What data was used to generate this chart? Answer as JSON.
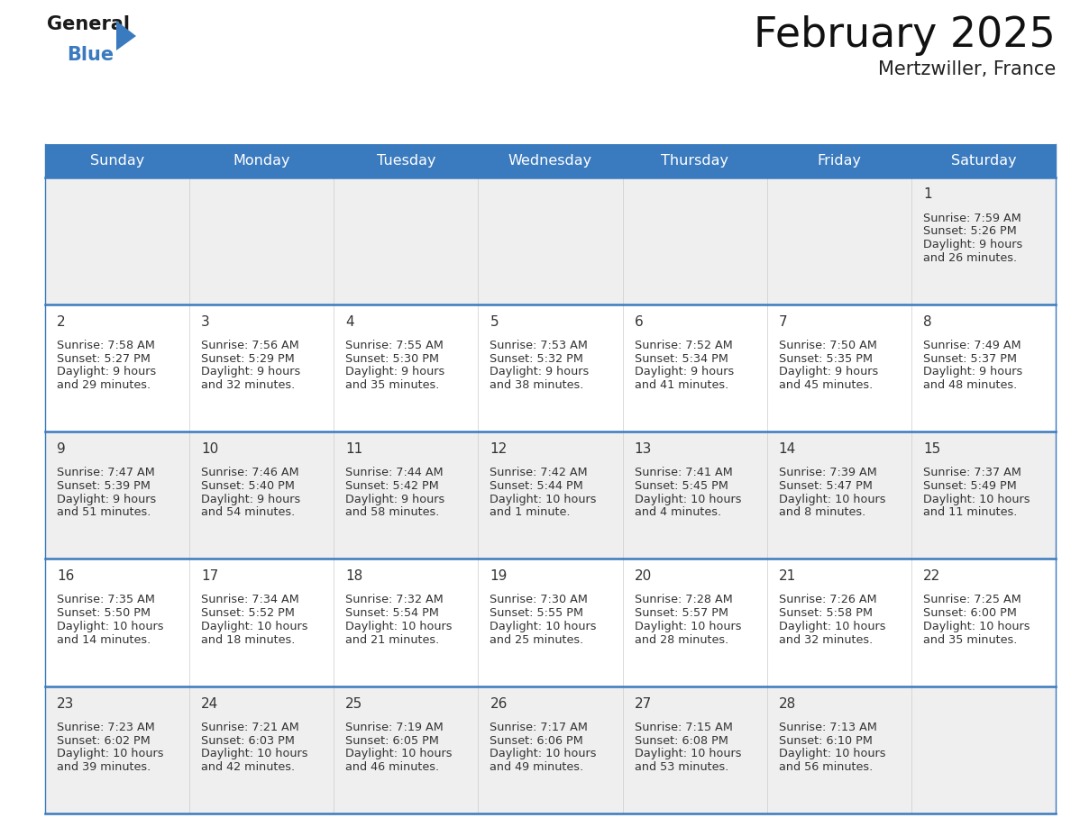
{
  "title": "February 2025",
  "subtitle": "Mertzwiller, France",
  "header_bg": "#3a7abf",
  "header_text_color": "#ffffff",
  "day_names": [
    "Sunday",
    "Monday",
    "Tuesday",
    "Wednesday",
    "Thursday",
    "Friday",
    "Saturday"
  ],
  "separator_color": "#3a7abf",
  "cell_bg_gray": "#efefef",
  "cell_bg_white": "#ffffff",
  "day_number_color": "#333333",
  "text_color": "#333333",
  "calendar": [
    [
      null,
      null,
      null,
      null,
      null,
      null,
      {
        "day": "1",
        "sunrise": "7:59 AM",
        "sunset": "5:26 PM",
        "daylight": "9 hours",
        "daylight2": "and 26 minutes."
      }
    ],
    [
      {
        "day": "2",
        "sunrise": "7:58 AM",
        "sunset": "5:27 PM",
        "daylight": "9 hours",
        "daylight2": "and 29 minutes."
      },
      {
        "day": "3",
        "sunrise": "7:56 AM",
        "sunset": "5:29 PM",
        "daylight": "9 hours",
        "daylight2": "and 32 minutes."
      },
      {
        "day": "4",
        "sunrise": "7:55 AM",
        "sunset": "5:30 PM",
        "daylight": "9 hours",
        "daylight2": "and 35 minutes."
      },
      {
        "day": "5",
        "sunrise": "7:53 AM",
        "sunset": "5:32 PM",
        "daylight": "9 hours",
        "daylight2": "and 38 minutes."
      },
      {
        "day": "6",
        "sunrise": "7:52 AM",
        "sunset": "5:34 PM",
        "daylight": "9 hours",
        "daylight2": "and 41 minutes."
      },
      {
        "day": "7",
        "sunrise": "7:50 AM",
        "sunset": "5:35 PM",
        "daylight": "9 hours",
        "daylight2": "and 45 minutes."
      },
      {
        "day": "8",
        "sunrise": "7:49 AM",
        "sunset": "5:37 PM",
        "daylight": "9 hours",
        "daylight2": "and 48 minutes."
      }
    ],
    [
      {
        "day": "9",
        "sunrise": "7:47 AM",
        "sunset": "5:39 PM",
        "daylight": "9 hours",
        "daylight2": "and 51 minutes."
      },
      {
        "day": "10",
        "sunrise": "7:46 AM",
        "sunset": "5:40 PM",
        "daylight": "9 hours",
        "daylight2": "and 54 minutes."
      },
      {
        "day": "11",
        "sunrise": "7:44 AM",
        "sunset": "5:42 PM",
        "daylight": "9 hours",
        "daylight2": "and 58 minutes."
      },
      {
        "day": "12",
        "sunrise": "7:42 AM",
        "sunset": "5:44 PM",
        "daylight": "10 hours",
        "daylight2": "and 1 minute."
      },
      {
        "day": "13",
        "sunrise": "7:41 AM",
        "sunset": "5:45 PM",
        "daylight": "10 hours",
        "daylight2": "and 4 minutes."
      },
      {
        "day": "14",
        "sunrise": "7:39 AM",
        "sunset": "5:47 PM",
        "daylight": "10 hours",
        "daylight2": "and 8 minutes."
      },
      {
        "day": "15",
        "sunrise": "7:37 AM",
        "sunset": "5:49 PM",
        "daylight": "10 hours",
        "daylight2": "and 11 minutes."
      }
    ],
    [
      {
        "day": "16",
        "sunrise": "7:35 AM",
        "sunset": "5:50 PM",
        "daylight": "10 hours",
        "daylight2": "and 14 minutes."
      },
      {
        "day": "17",
        "sunrise": "7:34 AM",
        "sunset": "5:52 PM",
        "daylight": "10 hours",
        "daylight2": "and 18 minutes."
      },
      {
        "day": "18",
        "sunrise": "7:32 AM",
        "sunset": "5:54 PM",
        "daylight": "10 hours",
        "daylight2": "and 21 minutes."
      },
      {
        "day": "19",
        "sunrise": "7:30 AM",
        "sunset": "5:55 PM",
        "daylight": "10 hours",
        "daylight2": "and 25 minutes."
      },
      {
        "day": "20",
        "sunrise": "7:28 AM",
        "sunset": "5:57 PM",
        "daylight": "10 hours",
        "daylight2": "and 28 minutes."
      },
      {
        "day": "21",
        "sunrise": "7:26 AM",
        "sunset": "5:58 PM",
        "daylight": "10 hours",
        "daylight2": "and 32 minutes."
      },
      {
        "day": "22",
        "sunrise": "7:25 AM",
        "sunset": "6:00 PM",
        "daylight": "10 hours",
        "daylight2": "and 35 minutes."
      }
    ],
    [
      {
        "day": "23",
        "sunrise": "7:23 AM",
        "sunset": "6:02 PM",
        "daylight": "10 hours",
        "daylight2": "and 39 minutes."
      },
      {
        "day": "24",
        "sunrise": "7:21 AM",
        "sunset": "6:03 PM",
        "daylight": "10 hours",
        "daylight2": "and 42 minutes."
      },
      {
        "day": "25",
        "sunrise": "7:19 AM",
        "sunset": "6:05 PM",
        "daylight": "10 hours",
        "daylight2": "and 46 minutes."
      },
      {
        "day": "26",
        "sunrise": "7:17 AM",
        "sunset": "6:06 PM",
        "daylight": "10 hours",
        "daylight2": "and 49 minutes."
      },
      {
        "day": "27",
        "sunrise": "7:15 AM",
        "sunset": "6:08 PM",
        "daylight": "10 hours",
        "daylight2": "and 53 minutes."
      },
      {
        "day": "28",
        "sunrise": "7:13 AM",
        "sunset": "6:10 PM",
        "daylight": "10 hours",
        "daylight2": "and 56 minutes."
      },
      null
    ]
  ],
  "logo_general_color": "#1a1a1a",
  "logo_blue_color": "#3a7abf",
  "logo_triangle_color": "#3a7abf"
}
